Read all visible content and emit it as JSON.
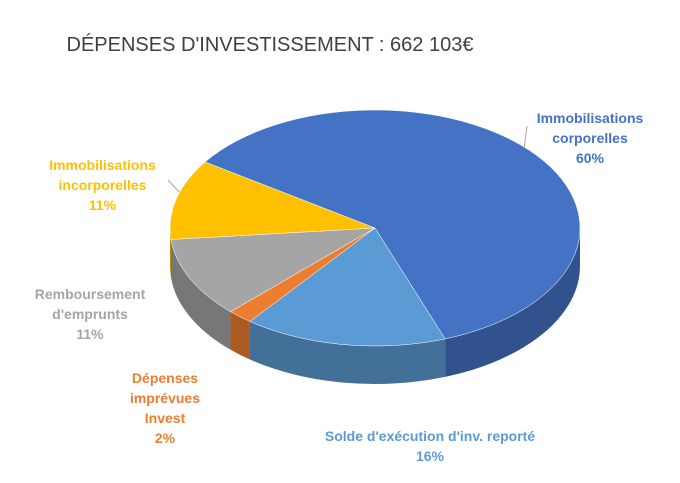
{
  "chart_data": {
    "type": "pie",
    "title": "DÉPENSES D'INVESTISSEMENT : 662 103€",
    "categories": [
      "Immobilisations corporelles",
      "Solde d'exécution d'inv. reporté",
      "Dépenses imprévues Invest",
      "Remboursement d'emprunts",
      "Immobilisations incorporelles"
    ],
    "values": [
      60,
      16,
      2,
      11,
      11
    ],
    "value_labels": [
      "60%",
      "16%",
      "2%",
      "11%",
      "11%"
    ],
    "colors": [
      "#4472c4",
      "#5b9bd5",
      "#ed7d31",
      "#a5a5a5",
      "#ffc000"
    ]
  }
}
